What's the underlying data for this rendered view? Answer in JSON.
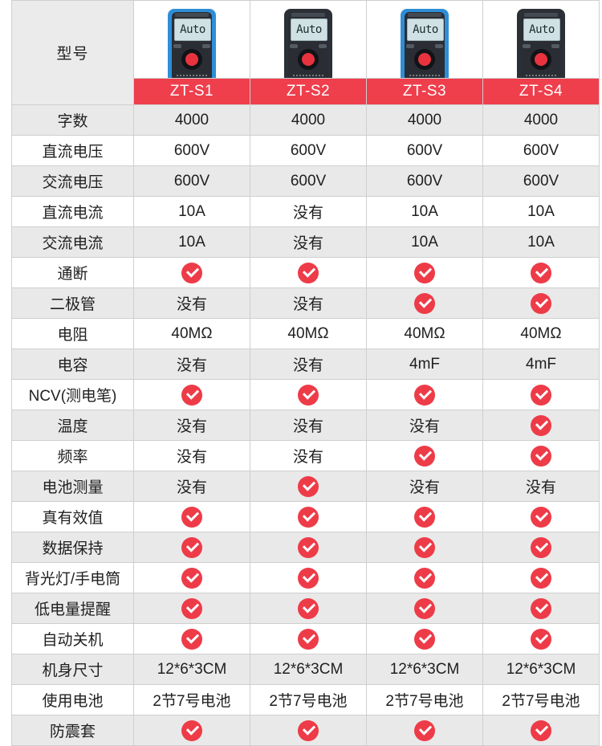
{
  "header_label": "型号",
  "models": [
    {
      "name": "ZT-S1",
      "lcd_text": "Auto",
      "body": "blue"
    },
    {
      "name": "ZT-S2",
      "lcd_text": "Auto",
      "body": "black"
    },
    {
      "name": "ZT-S3",
      "lcd_text": "Auto",
      "body": "blue"
    },
    {
      "name": "ZT-S4",
      "lcd_text": "Auto",
      "body": "black"
    }
  ],
  "check_marker": "✓",
  "colors": {
    "accent_red": "#ef3e4c",
    "check_red": "#ee3b48",
    "row_gray": "#e9e9e9",
    "row_white": "#ffffff"
  },
  "rows": [
    {
      "feature": "字数",
      "values": [
        "4000",
        "4000",
        "4000",
        "4000"
      ]
    },
    {
      "feature": "直流电压",
      "values": [
        "600V",
        "600V",
        "600V",
        "600V"
      ]
    },
    {
      "feature": "交流电压",
      "values": [
        "600V",
        "600V",
        "600V",
        "600V"
      ]
    },
    {
      "feature": "直流电流",
      "values": [
        "10A",
        "没有",
        "10A",
        "10A"
      ]
    },
    {
      "feature": "交流电流",
      "values": [
        "10A",
        "没有",
        "10A",
        "10A"
      ]
    },
    {
      "feature": "通断",
      "values": [
        "✓",
        "✓",
        "✓",
        "✓"
      ]
    },
    {
      "feature": "二极管",
      "values": [
        "没有",
        "没有",
        "✓",
        "✓"
      ]
    },
    {
      "feature": "电阻",
      "values": [
        "40MΩ",
        "40MΩ",
        "40MΩ",
        "40MΩ"
      ]
    },
    {
      "feature": "电容",
      "values": [
        "没有",
        "没有",
        "4mF",
        "4mF"
      ]
    },
    {
      "feature": "NCV(测电笔)",
      "values": [
        "✓",
        "✓",
        "✓",
        "✓"
      ]
    },
    {
      "feature": "温度",
      "values": [
        "没有",
        "没有",
        "没有",
        "✓"
      ]
    },
    {
      "feature": "频率",
      "values": [
        "没有",
        "没有",
        "✓",
        "✓"
      ]
    },
    {
      "feature": "电池测量",
      "values": [
        "没有",
        "✓",
        "没有",
        "没有"
      ]
    },
    {
      "feature": "真有效值",
      "values": [
        "✓",
        "✓",
        "✓",
        "✓"
      ]
    },
    {
      "feature": "数据保持",
      "values": [
        "✓",
        "✓",
        "✓",
        "✓"
      ]
    },
    {
      "feature": "背光灯/手电筒",
      "values": [
        "✓",
        "✓",
        "✓",
        "✓"
      ]
    },
    {
      "feature": "低电量提醒",
      "values": [
        "✓",
        "✓",
        "✓",
        "✓"
      ]
    },
    {
      "feature": "自动关机",
      "values": [
        "✓",
        "✓",
        "✓",
        "✓"
      ]
    },
    {
      "feature": "机身尺寸",
      "values": [
        "12*6*3CM",
        "12*6*3CM",
        "12*6*3CM",
        "12*6*3CM"
      ]
    },
    {
      "feature": "使用电池",
      "values": [
        "2节7号电池",
        "2节7号电池",
        "2节7号电池",
        "2节7号电池"
      ]
    },
    {
      "feature": "防震套",
      "values": [
        "✓",
        "✓",
        "✓",
        "✓"
      ]
    }
  ]
}
